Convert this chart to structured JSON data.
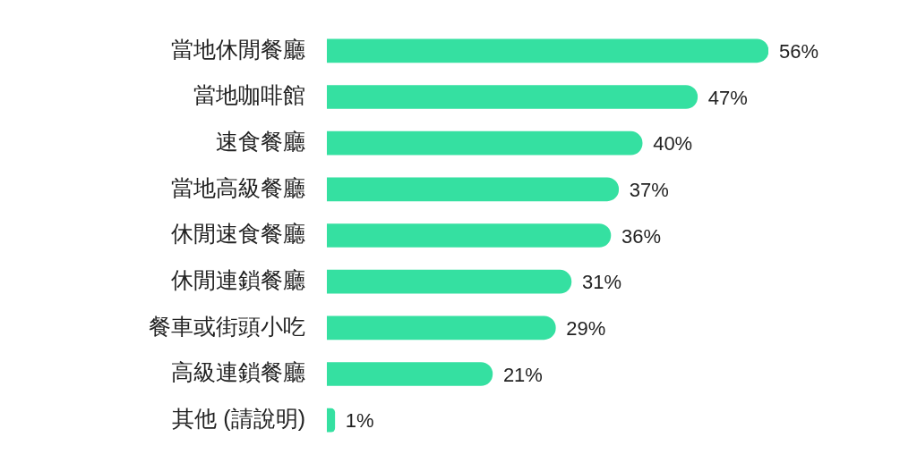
{
  "chart_data": {
    "type": "bar",
    "orientation": "horizontal",
    "tick_labels": "y",
    "categories": [
      "當地休閒餐廳",
      "當地咖啡館",
      "速食餐廳",
      "當地高級餐廳",
      "休閒速食餐廳",
      "休閒連鎖餐廳",
      "餐車或街頭小吃",
      "高級連鎖餐廳",
      "其他 (請說明)"
    ],
    "values": [
      56,
      47,
      40,
      37,
      36,
      31,
      29,
      21,
      1
    ],
    "color": "#35e0a1",
    "value_labels": [
      "56%",
      "47%",
      "40%",
      "37%",
      "36%",
      "31%",
      "29%",
      "21%",
      "1%"
    ]
  }
}
